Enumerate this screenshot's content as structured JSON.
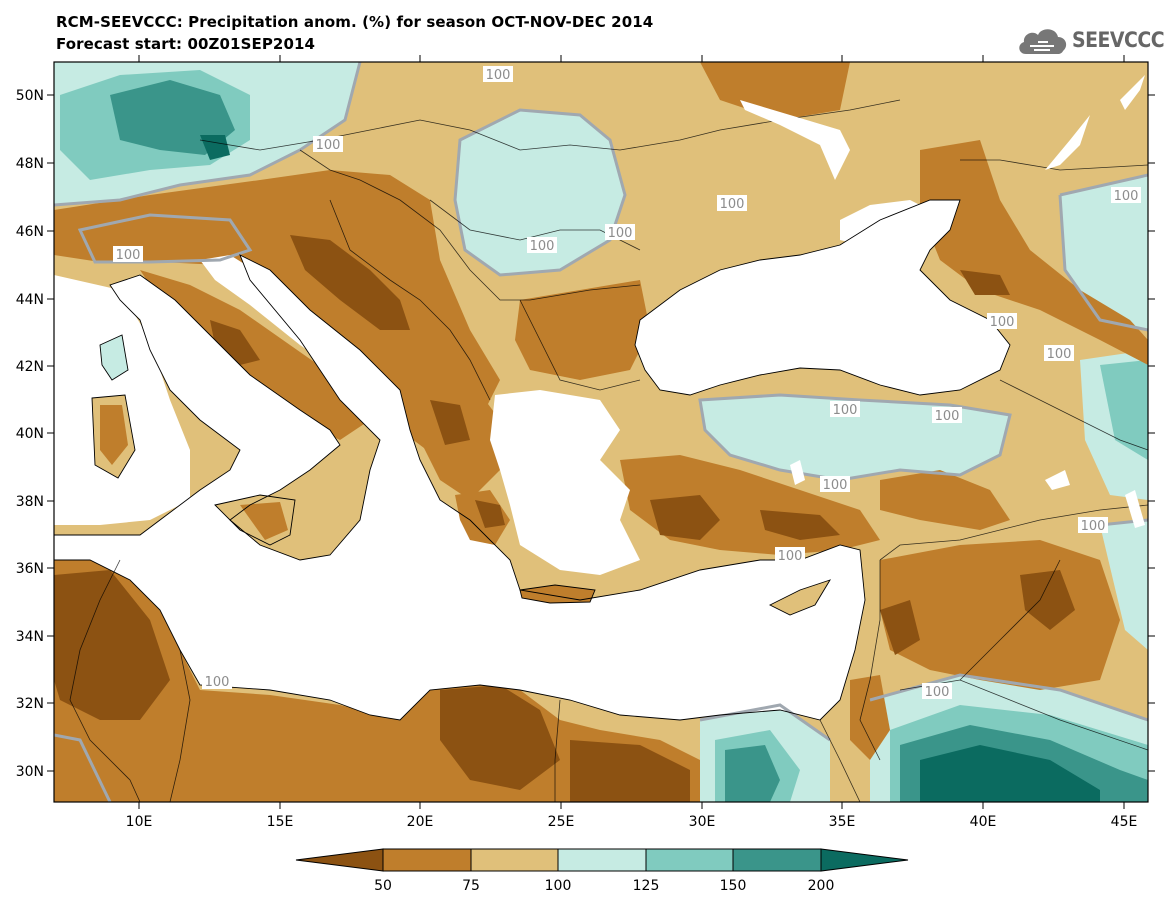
{
  "header": {
    "title_line1": "RCM-SEEVCCC: Precipitation anom. (%) for season OCT-NOV-DEC 2014",
    "title_line2": "Forecast start: 00Z01SEP2014",
    "logo_text": "SEEVCCC"
  },
  "map": {
    "lat_labels": [
      "50N",
      "48N",
      "46N",
      "44N",
      "42N",
      "40N",
      "38N",
      "36N",
      "34N",
      "32N",
      "30N"
    ],
    "lon_labels": [
      "10E",
      "15E",
      "20E",
      "25E",
      "30E",
      "35E",
      "40E",
      "45E"
    ],
    "contour_labels": [
      "100",
      "100",
      "100",
      "100",
      "100",
      "100",
      "100",
      "100",
      "100",
      "100",
      "100",
      "100",
      "100",
      "100",
      "100",
      "100"
    ]
  },
  "colorbar": {
    "labels": [
      "50",
      "75",
      "100",
      "125",
      "150",
      "200"
    ],
    "colors": [
      "#8c5212",
      "#bf7e2c",
      "#e0c07a",
      "#c6ebe3",
      "#80cbbf",
      "#3a958a",
      "#0b6b60"
    ]
  },
  "colors": {
    "sea": "#ffffff",
    "very_dry": "#8c5212",
    "dry": "#bf7e2c",
    "slightly_dry": "#e0c07a",
    "slightly_wet": "#c6ebe3",
    "wet": "#80cbbf",
    "very_wet": "#3a958a",
    "extremely_wet": "#0b6b60",
    "contour_100": "#a0a8b0"
  }
}
